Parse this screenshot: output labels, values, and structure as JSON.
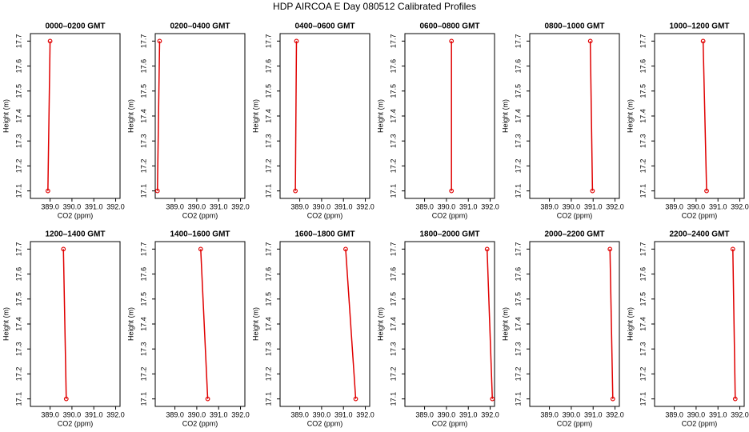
{
  "title": "HDP AIRCOA E  Day 080512  Calibrated Profiles",
  "chart_data": [
    {
      "type": "line",
      "title": "0000–0200 GMT",
      "xlabel": "CO2 (ppm)",
      "ylabel": "Height (m)",
      "color": "#e00000",
      "x": [
        388.9,
        389.0
      ],
      "values": [
        17.1,
        17.7
      ],
      "xlim": [
        388.1,
        392.2
      ],
      "ylim": [
        17.07,
        17.73
      ],
      "xticks": [
        {
          "value": 389,
          "label": "389.0"
        },
        {
          "value": 390,
          "label": "390.0"
        },
        {
          "value": 391,
          "label": "391.0"
        },
        {
          "value": 392,
          "label": "392.0"
        }
      ],
      "yticks": [
        17.1,
        17.2,
        17.3,
        17.4,
        17.5,
        17.6,
        17.7
      ]
    },
    {
      "type": "line",
      "title": "0200–0400 GMT",
      "xlabel": "CO2 (ppm)",
      "ylabel": "Height (m)",
      "color": "#e00000",
      "x": [
        388.2,
        388.3
      ],
      "values": [
        17.1,
        17.7
      ],
      "xlim": [
        388.1,
        392.2
      ],
      "ylim": [
        17.07,
        17.73
      ],
      "xticks": [
        {
          "value": 389,
          "label": "389.0"
        },
        {
          "value": 390,
          "label": "390.0"
        },
        {
          "value": 391,
          "label": "391.0"
        },
        {
          "value": 392,
          "label": "392.0"
        }
      ],
      "yticks": [
        17.1,
        17.2,
        17.3,
        17.4,
        17.5,
        17.6,
        17.7
      ]
    },
    {
      "type": "line",
      "title": "0400–0600 GMT",
      "xlabel": "CO2 (ppm)",
      "ylabel": "Height (m)",
      "color": "#e00000",
      "x": [
        388.8,
        388.85
      ],
      "values": [
        17.1,
        17.7
      ],
      "xlim": [
        388.1,
        392.2
      ],
      "ylim": [
        17.07,
        17.73
      ],
      "xticks": [
        {
          "value": 389,
          "label": "389.0"
        },
        {
          "value": 390,
          "label": "390.0"
        },
        {
          "value": 391,
          "label": "391.0"
        },
        {
          "value": 392,
          "label": "392.0"
        }
      ],
      "yticks": [
        17.1,
        17.2,
        17.3,
        17.4,
        17.5,
        17.6,
        17.7
      ]
    },
    {
      "type": "line",
      "title": "0600–0800 GMT",
      "xlabel": "CO2 (ppm)",
      "ylabel": "Height (m)",
      "color": "#e00000",
      "x": [
        390.23,
        390.23
      ],
      "values": [
        17.1,
        17.7
      ],
      "xlim": [
        388.1,
        392.2
      ],
      "ylim": [
        17.07,
        17.73
      ],
      "xticks": [
        {
          "value": 389,
          "label": "389.0"
        },
        {
          "value": 390,
          "label": "390.0"
        },
        {
          "value": 391,
          "label": "391.0"
        },
        {
          "value": 392,
          "label": "392.0"
        }
      ],
      "yticks": [
        17.1,
        17.2,
        17.3,
        17.4,
        17.5,
        17.6,
        17.7
      ]
    },
    {
      "type": "line",
      "title": "0800–1000 GMT",
      "xlabel": "CO2 (ppm)",
      "ylabel": "Height (m)",
      "color": "#e00000",
      "x": [
        390.97,
        390.87
      ],
      "values": [
        17.1,
        17.7
      ],
      "xlim": [
        388.1,
        392.2
      ],
      "ylim": [
        17.07,
        17.73
      ],
      "xticks": [
        {
          "value": 389,
          "label": "389.0"
        },
        {
          "value": 390,
          "label": "390.0"
        },
        {
          "value": 391,
          "label": "391.0"
        },
        {
          "value": 392,
          "label": "392.0"
        }
      ],
      "yticks": [
        17.1,
        17.2,
        17.3,
        17.4,
        17.5,
        17.6,
        17.7
      ]
    },
    {
      "type": "line",
      "title": "1000–1200 GMT",
      "xlabel": "CO2 (ppm)",
      "ylabel": "Height (m)",
      "color": "#e00000",
      "x": [
        390.48,
        390.32
      ],
      "values": [
        17.1,
        17.7
      ],
      "xlim": [
        388.1,
        392.2
      ],
      "ylim": [
        17.07,
        17.73
      ],
      "xticks": [
        {
          "value": 389,
          "label": "389.0"
        },
        {
          "value": 390,
          "label": "390.0"
        },
        {
          "value": 391,
          "label": "391.0"
        },
        {
          "value": 392,
          "label": "392.0"
        }
      ],
      "yticks": [
        17.1,
        17.2,
        17.3,
        17.4,
        17.5,
        17.6,
        17.7
      ]
    },
    {
      "type": "line",
      "title": "1200–1400 GMT",
      "xlabel": "CO2 (ppm)",
      "ylabel": "Height (m)",
      "color": "#e00000",
      "x": [
        389.74,
        389.61
      ],
      "values": [
        17.1,
        17.7
      ],
      "xlim": [
        388.1,
        392.2
      ],
      "ylim": [
        17.07,
        17.73
      ],
      "xticks": [
        {
          "value": 389,
          "label": "389.0"
        },
        {
          "value": 390,
          "label": "390.0"
        },
        {
          "value": 391,
          "label": "391.0"
        },
        {
          "value": 392,
          "label": "392.0"
        }
      ],
      "yticks": [
        17.1,
        17.2,
        17.3,
        17.4,
        17.5,
        17.6,
        17.7
      ]
    },
    {
      "type": "line",
      "title": "1400–1600 GMT",
      "xlabel": "CO2 (ppm)",
      "ylabel": "Height (m)",
      "color": "#e00000",
      "x": [
        390.5,
        390.18
      ],
      "values": [
        17.1,
        17.7
      ],
      "xlim": [
        388.1,
        392.2
      ],
      "ylim": [
        17.07,
        17.73
      ],
      "xticks": [
        {
          "value": 389,
          "label": "389.0"
        },
        {
          "value": 390,
          "label": "390.0"
        },
        {
          "value": 391,
          "label": "391.0"
        },
        {
          "value": 392,
          "label": "392.0"
        }
      ],
      "yticks": [
        17.1,
        17.2,
        17.3,
        17.4,
        17.5,
        17.6,
        17.7
      ]
    },
    {
      "type": "line",
      "title": "1600–1800 GMT",
      "xlabel": "CO2 (ppm)",
      "ylabel": "Height (m)",
      "color": "#e00000",
      "x": [
        391.56,
        391.1
      ],
      "values": [
        17.1,
        17.7
      ],
      "xlim": [
        388.1,
        392.2
      ],
      "ylim": [
        17.07,
        17.73
      ],
      "xticks": [
        {
          "value": 389,
          "label": "389.0"
        },
        {
          "value": 390,
          "label": "390.0"
        },
        {
          "value": 391,
          "label": "391.0"
        },
        {
          "value": 392,
          "label": "392.0"
        }
      ],
      "yticks": [
        17.1,
        17.2,
        17.3,
        17.4,
        17.5,
        17.6,
        17.7
      ]
    },
    {
      "type": "line",
      "title": "1800–2000 GMT",
      "xlabel": "CO2 (ppm)",
      "ylabel": "Height (m)",
      "color": "#e00000",
      "x": [
        392.1,
        391.86
      ],
      "values": [
        17.1,
        17.7
      ],
      "xlim": [
        388.1,
        392.2
      ],
      "ylim": [
        17.07,
        17.73
      ],
      "xticks": [
        {
          "value": 389,
          "label": "389.0"
        },
        {
          "value": 390,
          "label": "390.0"
        },
        {
          "value": 391,
          "label": "391.0"
        },
        {
          "value": 392,
          "label": "392.0"
        }
      ],
      "yticks": [
        17.1,
        17.2,
        17.3,
        17.4,
        17.5,
        17.6,
        17.7
      ]
    },
    {
      "type": "line",
      "title": "2000–2200 GMT",
      "xlabel": "CO2 (ppm)",
      "ylabel": "Height (m)",
      "color": "#e00000",
      "x": [
        391.9,
        391.77
      ],
      "values": [
        17.1,
        17.7
      ],
      "xlim": [
        388.1,
        392.2
      ],
      "ylim": [
        17.07,
        17.73
      ],
      "xticks": [
        {
          "value": 389,
          "label": "389.0"
        },
        {
          "value": 390,
          "label": "390.0"
        },
        {
          "value": 391,
          "label": "391.0"
        },
        {
          "value": 392,
          "label": "392.0"
        }
      ],
      "yticks": [
        17.1,
        17.2,
        17.3,
        17.4,
        17.5,
        17.6,
        17.7
      ]
    },
    {
      "type": "line",
      "title": "2200–2400 GMT",
      "xlabel": "CO2 (ppm)",
      "ylabel": "Height (m)",
      "color": "#e00000",
      "x": [
        391.79,
        391.68
      ],
      "values": [
        17.1,
        17.7
      ],
      "xlim": [
        388.1,
        392.2
      ],
      "ylim": [
        17.07,
        17.73
      ],
      "xticks": [
        {
          "value": 389,
          "label": "389.0"
        },
        {
          "value": 390,
          "label": "390.0"
        },
        {
          "value": 391,
          "label": "391.0"
        },
        {
          "value": 392,
          "label": "392.0"
        }
      ],
      "yticks": [
        17.1,
        17.2,
        17.3,
        17.4,
        17.5,
        17.6,
        17.7
      ]
    }
  ]
}
